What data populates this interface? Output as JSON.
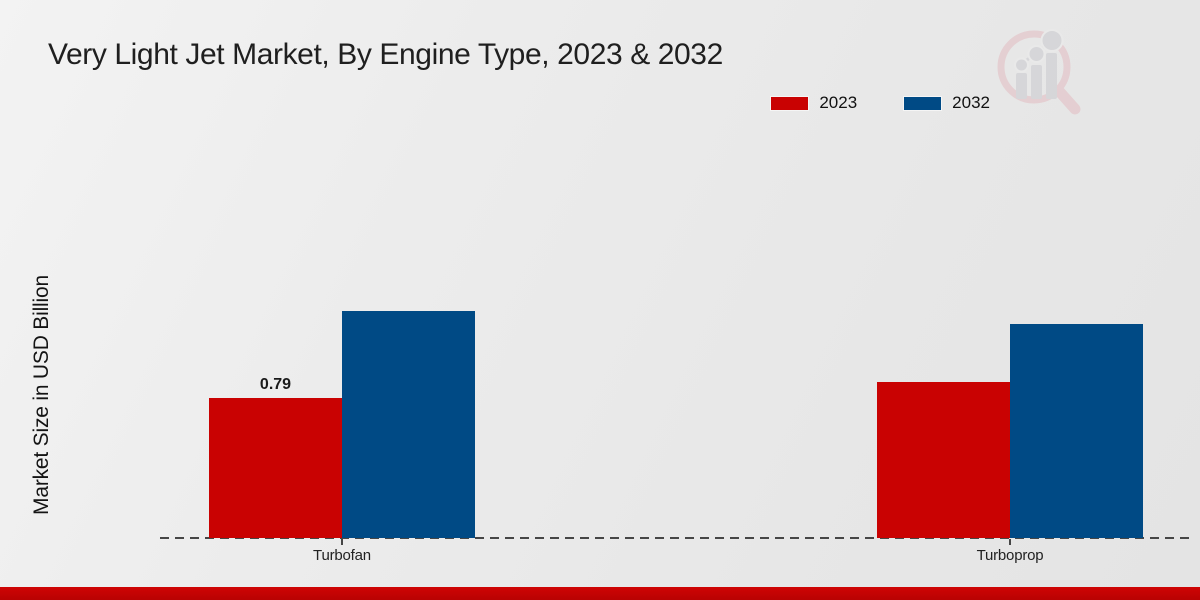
{
  "page": {
    "background_color": "#ebebeb",
    "footer_accent_color": "#c40404"
  },
  "logo": {
    "icon": "magnifier-bar-chart-logo",
    "ring_color": "#e3bcc1",
    "bar_color": "#c9c9ce"
  },
  "chart_data": {
    "type": "bar",
    "title": "Very Light Jet Market, By Engine Type, 2023 & 2032",
    "xlabel": "",
    "ylabel": "Market Size in USD Billion",
    "categories": [
      "Turbofan",
      "Turboprop"
    ],
    "series": [
      {
        "name": "2023",
        "color": "#c90202",
        "values": [
          0.79,
          0.88
        ]
      },
      {
        "name": "2032",
        "color": "#004a85",
        "values": [
          1.28,
          1.21
        ]
      }
    ],
    "data_labels": [
      {
        "series": "2023",
        "category": "Turbofan",
        "text": "0.79"
      }
    ],
    "ylim": [
      0,
      2.2
    ],
    "grid": false,
    "y_axis_ticks_visible": false,
    "baseline_style": "dashed",
    "legend_position": "top-right"
  }
}
